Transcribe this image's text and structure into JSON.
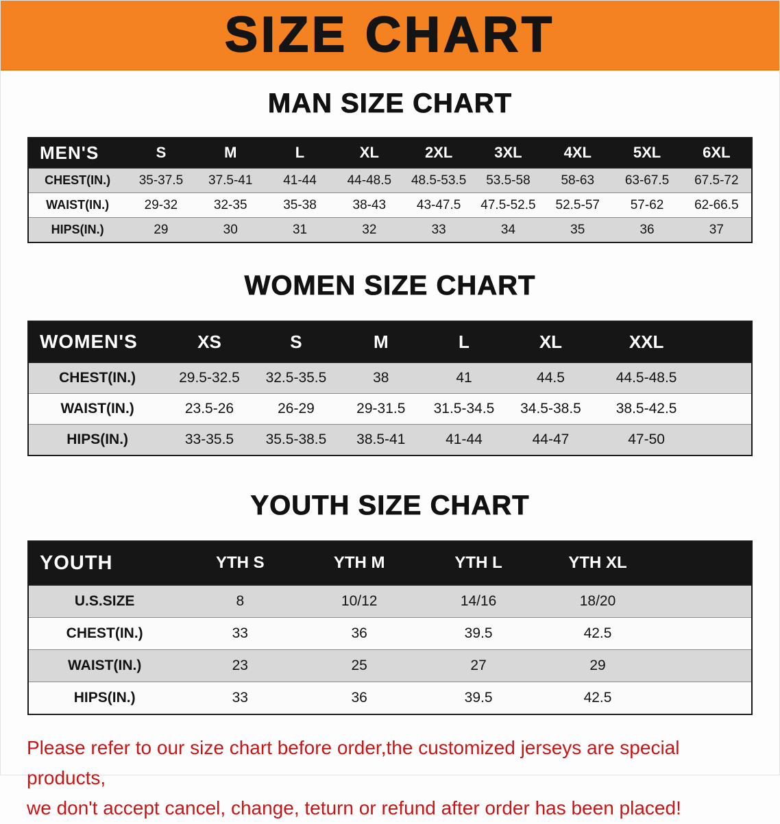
{
  "banner": {
    "title": "SIZE CHART"
  },
  "colors": {
    "banner_bg": "#f58220",
    "table_header_bg": "#161616",
    "row_shade": "#d8d8d8",
    "footer_text": "#cc1414"
  },
  "sections": [
    {
      "heading": "MAN SIZE CHART",
      "table": {
        "label": "MEN'S",
        "columns": [
          "S",
          "M",
          "L",
          "XL",
          "2XL",
          "3XL",
          "4XL",
          "5XL",
          "6XL"
        ],
        "rows": [
          {
            "label": "CHEST(IN.)",
            "values": [
              "35-37.5",
              "37.5-41",
              "41-44",
              "44-48.5",
              "48.5-53.5",
              "53.5-58",
              "58-63",
              "63-67.5",
              "67.5-72"
            ]
          },
          {
            "label": "WAIST(IN.)",
            "values": [
              "29-32",
              "32-35",
              "35-38",
              "38-43",
              "43-47.5",
              "47.5-52.5",
              "52.5-57",
              "57-62",
              "62-66.5"
            ]
          },
          {
            "label": "HIPS(IN.)",
            "values": [
              "29",
              "30",
              "31",
              "32",
              "33",
              "34",
              "35",
              "36",
              "37"
            ]
          }
        ]
      }
    },
    {
      "heading": "WOMEN SIZE CHART",
      "table": {
        "label": "WOMEN'S",
        "columns": [
          "XS",
          "S",
          "M",
          "L",
          "XL",
          "XXL"
        ],
        "rows": [
          {
            "label": "CHEST(IN.)",
            "values": [
              "29.5-32.5",
              "32.5-35.5",
              "38",
              "41",
              "44.5",
              "44.5-48.5"
            ]
          },
          {
            "label": "WAIST(IN.)",
            "values": [
              "23.5-26",
              "26-29",
              "29-31.5",
              "31.5-34.5",
              "34.5-38.5",
              "38.5-42.5"
            ]
          },
          {
            "label": "HIPS(IN.)",
            "values": [
              "33-35.5",
              "35.5-38.5",
              "38.5-41",
              "41-44",
              "44-47",
              "47-50"
            ]
          }
        ]
      }
    },
    {
      "heading": "YOUTH SIZE CHART",
      "table": {
        "label": "YOUTH",
        "columns": [
          "YTH S",
          "YTH M",
          "YTH L",
          "YTH XL"
        ],
        "rows": [
          {
            "label": "U.S.SIZE",
            "values": [
              "8",
              "10/12",
              "14/16",
              "18/20"
            ]
          },
          {
            "label": "CHEST(IN.)",
            "values": [
              "33",
              "36",
              "39.5",
              "42.5"
            ]
          },
          {
            "label": "WAIST(IN.)",
            "values": [
              "23",
              "25",
              "27",
              "29"
            ]
          },
          {
            "label": "HIPS(IN.)",
            "values": [
              "33",
              "36",
              "39.5",
              "42.5"
            ]
          }
        ]
      }
    }
  ],
  "footer": {
    "lines": [
      "Please refer to our size chart before order,the customized jerseys are special products,",
      "we don't accept cancel, change, teturn or refund after order has been placed!"
    ]
  }
}
